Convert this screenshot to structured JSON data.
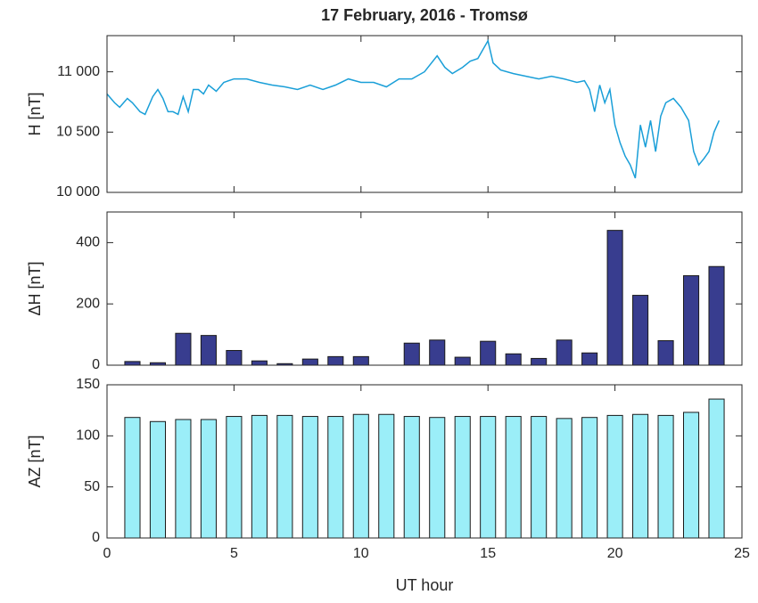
{
  "chart_data": [
    {
      "type": "line",
      "title": "17 February, 2016 - Tromsø",
      "ylabel": "H [nT]",
      "color": "#1a9fd8",
      "x": [
        0,
        0.3,
        0.5,
        0.8,
        1.0,
        1.3,
        1.5,
        1.8,
        2.0,
        2.2,
        2.4,
        2.6,
        2.8,
        3.0,
        3.2,
        3.4,
        3.6,
        3.8,
        4.0,
        4.3,
        4.6,
        5.0,
        5.5,
        6.0,
        6.5,
        7.0,
        7.5,
        8.0,
        8.5,
        9.0,
        9.5,
        10.0,
        10.5,
        11.0,
        11.5,
        12.0,
        12.5,
        13.0,
        13.3,
        13.6,
        14.0,
        14.3,
        14.6,
        14.8,
        15.0,
        15.2,
        15.5,
        16.0,
        16.5,
        17.0,
        17.5,
        18.0,
        18.5,
        18.8,
        19.0,
        19.2,
        19.4,
        19.6,
        19.8,
        20.0,
        20.2,
        20.4,
        20.6,
        20.8,
        21.0,
        21.2,
        21.4,
        21.6,
        21.8,
        22.0,
        22.3,
        22.6,
        22.9,
        23.1,
        23.3,
        23.5,
        23.7,
        23.9,
        24.1
      ],
      "values": [
        10816,
        10743,
        10706,
        10779,
        10743,
        10669,
        10647,
        10794,
        10853,
        10779,
        10669,
        10669,
        10647,
        10794,
        10669,
        10853,
        10853,
        10816,
        10890,
        10838,
        10912,
        10941,
        10941,
        10912,
        10890,
        10875,
        10853,
        10890,
        10853,
        10890,
        10941,
        10912,
        10912,
        10875,
        10941,
        10941,
        11000,
        11132,
        11037,
        10985,
        11037,
        11088,
        11110,
        11184,
        11257,
        11074,
        11015,
        10985,
        10963,
        10941,
        10963,
        10941,
        10912,
        10926,
        10853,
        10669,
        10890,
        10743,
        10853,
        10559,
        10412,
        10301,
        10228,
        10118,
        10559,
        10375,
        10596,
        10338,
        10632,
        10743,
        10779,
        10706,
        10596,
        10338,
        10228,
        10279,
        10338,
        10500,
        10596
      ],
      "xlim": [
        0,
        25
      ],
      "ylim": [
        10000,
        11300
      ],
      "yticks": [
        {
          "value": 10000,
          "label": "10 000"
        },
        {
          "value": 10500,
          "label": "10 500"
        },
        {
          "value": 11000,
          "label": "11 000"
        }
      ]
    },
    {
      "type": "bar",
      "ylabel": "ΔH [nT]",
      "color": "#383d8f",
      "x": [
        1,
        2,
        3,
        4,
        5,
        6,
        7,
        8,
        9,
        10,
        11,
        12,
        13,
        14,
        15,
        16,
        17,
        18,
        19,
        20,
        21,
        22,
        23,
        24
      ],
      "values": [
        12,
        8,
        104,
        97,
        48,
        14,
        5,
        20,
        28,
        28,
        null,
        72,
        82,
        26,
        78,
        37,
        22,
        82,
        40,
        440,
        228,
        80,
        292,
        322
      ],
      "xlim": [
        0,
        25
      ],
      "ylim": [
        0,
        500
      ],
      "yticks": [
        0,
        200,
        400
      ]
    },
    {
      "type": "bar",
      "ylabel": "AZ [nT]",
      "xlabel": "UT hour",
      "color": "#9beef8",
      "x": [
        1,
        2,
        3,
        4,
        5,
        6,
        7,
        8,
        9,
        10,
        11,
        12,
        13,
        14,
        15,
        16,
        17,
        18,
        19,
        20,
        21,
        22,
        23,
        24
      ],
      "values": [
        118,
        114,
        116,
        116,
        119,
        120,
        120,
        119,
        119,
        121,
        121,
        119,
        118,
        119,
        119,
        119,
        119,
        117,
        118,
        120,
        121,
        120,
        123,
        136
      ],
      "xlim": [
        0,
        25
      ],
      "ylim": [
        0,
        150
      ],
      "yticks": [
        0,
        50,
        100,
        150
      ],
      "xticks": [
        0,
        5,
        10,
        15,
        20,
        25
      ]
    }
  ]
}
